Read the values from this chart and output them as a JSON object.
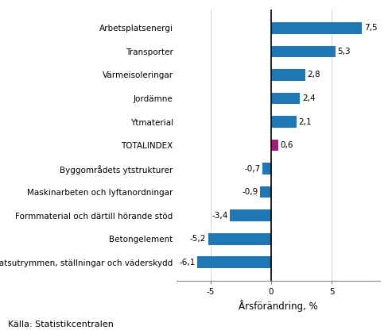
{
  "categories": [
    "Arbetsplatsutrymmen, ställningar och väderskydd",
    "Betongelement",
    "Formmaterial och därtill hörande stöd",
    "Maskinarbeten och lyftanordningar",
    "Byggområdets ytstrukturer",
    "TOTALINDEX",
    "Ytmaterial",
    "Jordämne",
    "Värmeisoleringar",
    "Transporter",
    "Arbetsplatsenergi"
  ],
  "values": [
    -6.1,
    -5.2,
    -3.4,
    -0.9,
    -0.7,
    0.6,
    2.1,
    2.4,
    2.8,
    5.3,
    7.5
  ],
  "bar_colors": [
    "#1f77b4",
    "#1f77b4",
    "#1f77b4",
    "#1f77b4",
    "#1f77b4",
    "#9e1f7a",
    "#1f77b4",
    "#1f77b4",
    "#1f77b4",
    "#1f77b4",
    "#1f77b4"
  ],
  "xlabel": "Årsförändring, %",
  "source": "Källa: Statistikcentralen",
  "xlim": [
    -7.8,
    9.0
  ],
  "xticks": [
    -5,
    0,
    5
  ],
  "background_color": "#ffffff",
  "label_fontsize": 7.5,
  "value_label_fontsize": 7.5,
  "xlabel_fontsize": 8.5,
  "source_fontsize": 8.0,
  "bar_height": 0.5
}
